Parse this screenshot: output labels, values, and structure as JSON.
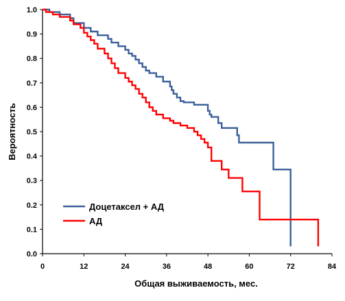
{
  "chart_data": {
    "type": "line",
    "step": true,
    "xlabel": "Общая выживаемость, мес.",
    "ylabel": "Вероятность",
    "xlim": [
      0,
      84
    ],
    "ylim": [
      0,
      1
    ],
    "x_ticks": [
      0,
      12,
      24,
      36,
      48,
      60,
      72,
      84
    ],
    "y_ticks": [
      0.0,
      0.1,
      0.2,
      0.3,
      0.4,
      0.5,
      0.6,
      0.7,
      0.8,
      0.9,
      1.0
    ],
    "x_tick_labels": [
      "0",
      "12",
      "24",
      "36",
      "48",
      "60",
      "72",
      "84"
    ],
    "y_tick_labels": [
      "0.0",
      "0.1",
      "0.2",
      "0.3",
      "0.4",
      "0.5",
      "0.6",
      "0.7",
      "0.8",
      "0.9",
      "1.0"
    ],
    "grid": false,
    "legend": "bottom-left",
    "series": [
      {
        "name": "Доцетаксел + АД",
        "color": "#3a5f9a",
        "points": [
          [
            0,
            1.0
          ],
          [
            2,
            0.99
          ],
          [
            5,
            0.98
          ],
          [
            8,
            0.965
          ],
          [
            9,
            0.945
          ],
          [
            12,
            0.925
          ],
          [
            14,
            0.91
          ],
          [
            16,
            0.895
          ],
          [
            19,
            0.88
          ],
          [
            20,
            0.865
          ],
          [
            22,
            0.85
          ],
          [
            24,
            0.835
          ],
          [
            25,
            0.82
          ],
          [
            26,
            0.81
          ],
          [
            27,
            0.795
          ],
          [
            28,
            0.78
          ],
          [
            29,
            0.765
          ],
          [
            30,
            0.75
          ],
          [
            31,
            0.74
          ],
          [
            33,
            0.725
          ],
          [
            35,
            0.705
          ],
          [
            37,
            0.685
          ],
          [
            37.5,
            0.67
          ],
          [
            38,
            0.655
          ],
          [
            39,
            0.64
          ],
          [
            40,
            0.625
          ],
          [
            41,
            0.62
          ],
          [
            44,
            0.61
          ],
          [
            48,
            0.585
          ],
          [
            48.5,
            0.57
          ],
          [
            49,
            0.56
          ],
          [
            51,
            0.535
          ],
          [
            52,
            0.515
          ],
          [
            56.5,
            0.485
          ],
          [
            57,
            0.455
          ],
          [
            67,
            0.345
          ],
          [
            72,
            0.03
          ]
        ],
        "end_x": 72
      },
      {
        "name": "АД",
        "color": "#ff0000",
        "points": [
          [
            0,
            1.0
          ],
          [
            1,
            0.99
          ],
          [
            3,
            0.98
          ],
          [
            5,
            0.97
          ],
          [
            8,
            0.955
          ],
          [
            9,
            0.94
          ],
          [
            11,
            0.925
          ],
          [
            12,
            0.905
          ],
          [
            13,
            0.89
          ],
          [
            14,
            0.875
          ],
          [
            15,
            0.86
          ],
          [
            16,
            0.84
          ],
          [
            18,
            0.82
          ],
          [
            19,
            0.8
          ],
          [
            20,
            0.78
          ],
          [
            21,
            0.76
          ],
          [
            22,
            0.74
          ],
          [
            24,
            0.72
          ],
          [
            25,
            0.705
          ],
          [
            26,
            0.69
          ],
          [
            27,
            0.675
          ],
          [
            28,
            0.655
          ],
          [
            29,
            0.64
          ],
          [
            30,
            0.62
          ],
          [
            31,
            0.6
          ],
          [
            32,
            0.585
          ],
          [
            33,
            0.57
          ],
          [
            35,
            0.555
          ],
          [
            37,
            0.545
          ],
          [
            38,
            0.535
          ],
          [
            40,
            0.525
          ],
          [
            42,
            0.515
          ],
          [
            44,
            0.5
          ],
          [
            45,
            0.485
          ],
          [
            46,
            0.47
          ],
          [
            47,
            0.455
          ],
          [
            48,
            0.435
          ],
          [
            49,
            0.38
          ],
          [
            52,
            0.345
          ],
          [
            54,
            0.31
          ],
          [
            58,
            0.255
          ],
          [
            63,
            0.14
          ],
          [
            80,
            0.03
          ]
        ],
        "end_x": 80
      }
    ]
  }
}
